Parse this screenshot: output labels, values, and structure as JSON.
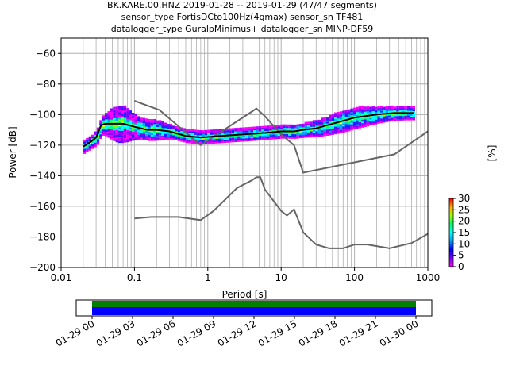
{
  "chart_data": {
    "type": "heatmap",
    "title": {
      "line1": "BK.KARE.00.HNZ   2019-01-28 -- 2019-01-29  (47/47 segments)",
      "line2": "sensor_type FortisDCto100Hz(4gmax) sensor_sn TF481",
      "line3": "datalogger_type GuralpMinimus+ datalogger_sn MINP-DF59"
    },
    "xlabel": "Period [s]",
    "ylabel": "Power [dB]",
    "x_scale": "log",
    "xlim": [
      0.01,
      1000
    ],
    "ylim": [
      -200,
      -50
    ],
    "x_ticks": [
      {
        "value": 0.01,
        "label": "0.01"
      },
      {
        "value": 0.1,
        "label": "0.1"
      },
      {
        "value": 1,
        "label": "1"
      },
      {
        "value": 10,
        "label": "10"
      },
      {
        "value": 100,
        "label": "100"
      },
      {
        "value": 1000,
        "label": "1000"
      }
    ],
    "y_ticks": [
      {
        "value": -60,
        "label": "−60"
      },
      {
        "value": -80,
        "label": "−80"
      },
      {
        "value": -100,
        "label": "−100"
      },
      {
        "value": -120,
        "label": "−120"
      },
      {
        "value": -140,
        "label": "−140"
      },
      {
        "value": -160,
        "label": "−160"
      },
      {
        "value": -180,
        "label": "−180"
      },
      {
        "value": -200,
        "label": "−200"
      }
    ],
    "grid": true,
    "noise_models": [
      {
        "points": [
          [
            0.1,
            -91
          ],
          [
            0.22,
            -97
          ],
          [
            0.8,
            -120
          ],
          [
            4,
            -98
          ],
          [
            4.6,
            -96
          ],
          [
            6,
            -101
          ],
          [
            10,
            -113
          ],
          [
            15,
            -120
          ],
          [
            20,
            -138
          ],
          [
            350,
            -126
          ],
          [
            1000,
            -111
          ]
        ]
      },
      {
        "points": [
          [
            0.1,
            -168
          ],
          [
            0.17,
            -167
          ],
          [
            0.4,
            -167
          ],
          [
            0.8,
            -169
          ],
          [
            1.2,
            -163
          ],
          [
            2.5,
            -148
          ],
          [
            4,
            -143
          ],
          [
            4.6,
            -141
          ],
          [
            5.2,
            -141
          ],
          [
            6,
            -149
          ],
          [
            10,
            -163
          ],
          [
            12,
            -166
          ],
          [
            15,
            -162
          ],
          [
            20,
            -177
          ],
          [
            30,
            -185
          ],
          [
            45,
            -187.5
          ],
          [
            70,
            -187.5
          ],
          [
            100,
            -185
          ],
          [
            150,
            -185
          ],
          [
            300,
            -187.5
          ],
          [
            600,
            -184
          ],
          [
            1000,
            -178
          ]
        ]
      }
    ],
    "median_curve": [
      [
        0.02,
        -121
      ],
      [
        0.025,
        -118
      ],
      [
        0.03,
        -115
      ],
      [
        0.035,
        -107
      ],
      [
        0.04,
        -106
      ],
      [
        0.05,
        -106
      ],
      [
        0.07,
        -106
      ],
      [
        0.1,
        -108
      ],
      [
        0.15,
        -110
      ],
      [
        0.2,
        -110
      ],
      [
        0.3,
        -111
      ],
      [
        0.5,
        -114
      ],
      [
        0.8,
        -115
      ],
      [
        1.5,
        -114
      ],
      [
        3,
        -113
      ],
      [
        6,
        -112
      ],
      [
        10,
        -111
      ],
      [
        15,
        -111
      ],
      [
        20,
        -110
      ],
      [
        30,
        -109
      ],
      [
        50,
        -106
      ],
      [
        100,
        -102
      ],
      [
        200,
        -100
      ],
      [
        350,
        -99
      ],
      [
        650,
        -99
      ]
    ],
    "colorbar": {
      "label": "[%]",
      "min": 0,
      "max": 30,
      "ticks": [
        {
          "value": 0,
          "label": "0"
        },
        {
          "value": 5,
          "label": "5"
        },
        {
          "value": 10,
          "label": "10"
        },
        {
          "value": 15,
          "label": "15"
        },
        {
          "value": 20,
          "label": "20"
        },
        {
          "value": 25,
          "label": "25"
        },
        {
          "value": 30,
          "label": "30"
        }
      ]
    },
    "coverage": {
      "time_ticks": [
        "01-29 00",
        "01-29 03",
        "01-29 06",
        "01-29 09",
        "01-29 12",
        "01-29 15",
        "01-29 18",
        "01-29 21",
        "01-30 00"
      ],
      "colors": {
        "data": "#0000ff",
        "gaps_free": "#008000"
      }
    }
  }
}
